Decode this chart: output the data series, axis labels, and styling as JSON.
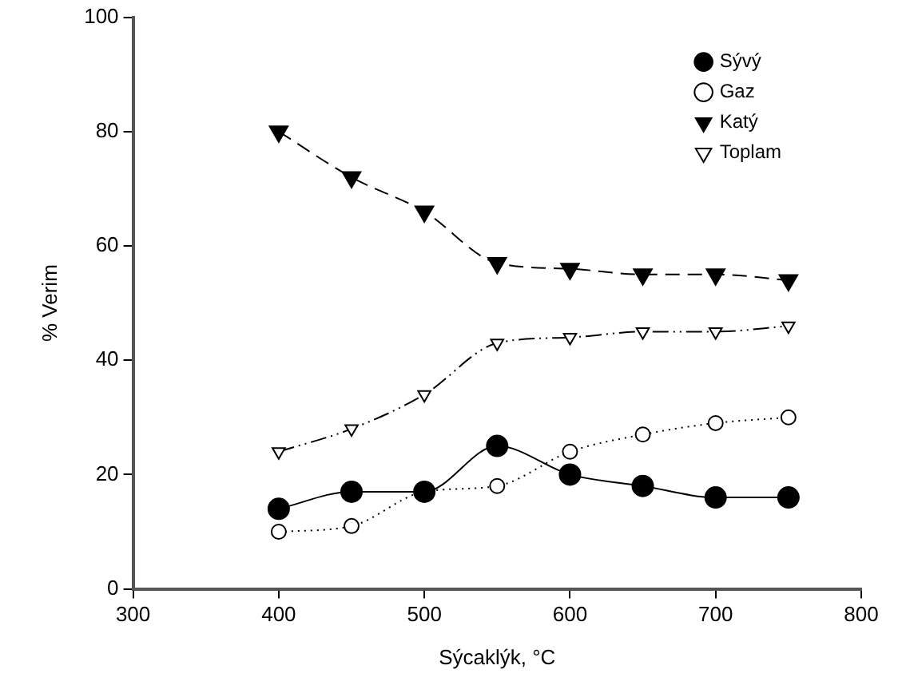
{
  "chart_data": {
    "type": "line",
    "xlabel": "Sýcaklýk, °C",
    "ylabel": "% Verim",
    "xlim": [
      300,
      800
    ],
    "xticks": [
      300,
      400,
      500,
      600,
      700,
      800
    ],
    "ylim": [
      0,
      100
    ],
    "yticks": [
      0,
      20,
      40,
      60,
      80,
      100
    ],
    "grid": false,
    "legend": "top right",
    "x": [
      400,
      450,
      500,
      550,
      600,
      650,
      700,
      750
    ],
    "series": [
      {
        "name": "Sývý",
        "color": "#000000",
        "marker": "circle",
        "line_style": "solid",
        "values": [
          14,
          17,
          17,
          25,
          20,
          18,
          16,
          16
        ]
      },
      {
        "name": "Gaz",
        "color": "#000000",
        "marker": "circle-open",
        "line_style": "dotted",
        "values": [
          10,
          11,
          17,
          18,
          24,
          27,
          29,
          30
        ]
      },
      {
        "name": "Katý",
        "color": "#000000",
        "marker": "triangle-down",
        "line_style": "dashed",
        "values": [
          80,
          72,
          66,
          57,
          56,
          55,
          55,
          54
        ]
      },
      {
        "name": "Toplam",
        "color": "#000000",
        "marker": "triangle-down-open",
        "line_style": "dashdot",
        "values": [
          24,
          28,
          34,
          43,
          44,
          45,
          45,
          46
        ]
      }
    ]
  }
}
